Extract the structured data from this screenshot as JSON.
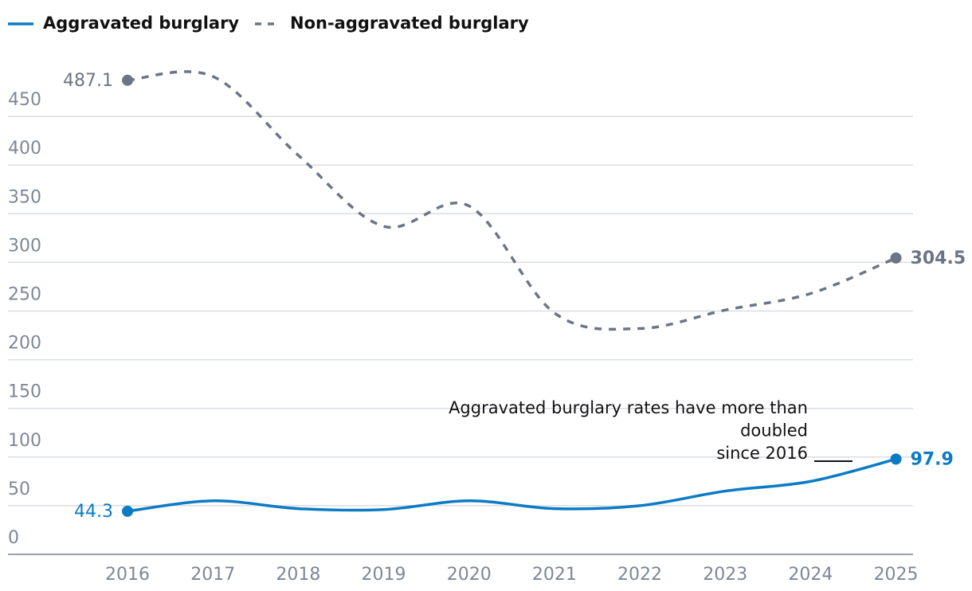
{
  "chart_data": {
    "type": "line",
    "x": [
      2016,
      2017,
      2018,
      2019,
      2020,
      2021,
      2022,
      2023,
      2024,
      2025
    ],
    "xlim": [
      2014.6,
      2025.2
    ],
    "xticks": [
      2016,
      2017,
      2018,
      2019,
      2020,
      2021,
      2022,
      2023,
      2024,
      2025
    ],
    "ylim": [
      0,
      500
    ],
    "yticks": [
      0,
      50,
      100,
      150,
      200,
      250,
      300,
      350,
      400,
      450
    ],
    "grid": true,
    "legend": "top-left",
    "series": [
      {
        "name": "Aggravated burglary",
        "color": "#0b7bc4",
        "style": "solid",
        "values": [
          44.3,
          55,
          47,
          46,
          55,
          47,
          50,
          65,
          75,
          97.9
        ]
      },
      {
        "name": "Non-aggravated burglary",
        "color": "#6c7585",
        "style": "dashed",
        "values": [
          487.1,
          491,
          410,
          337,
          358,
          248,
          232,
          251,
          268,
          304.5
        ]
      }
    ],
    "annotation": [
      "Aggravated burglary rates have more than",
      "doubled",
      "since 2016"
    ]
  }
}
